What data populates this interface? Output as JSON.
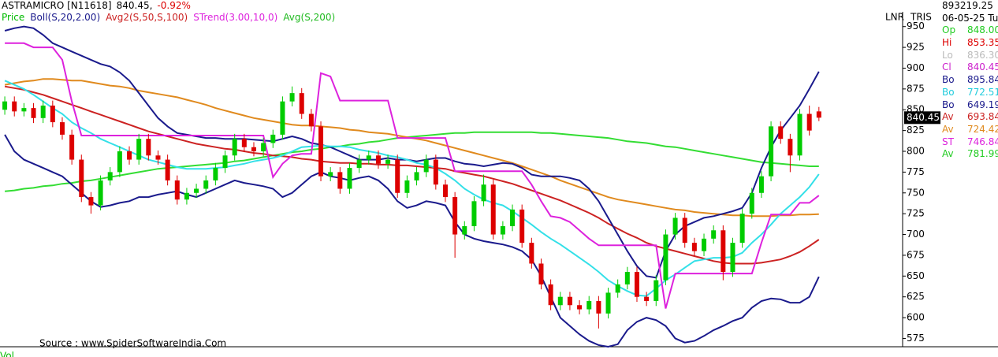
{
  "header": {
    "symbol": "ASTRAMICRO [N11618]",
    "price": "840.45,",
    "change": "-0.92%",
    "change_color": "#dd0000"
  },
  "chart_data": {
    "type": "candlestick",
    "legend": [
      {
        "name": "Price",
        "color": "#00bb00"
      },
      {
        "name": "Boll(S,20,2.00)",
        "color": "#1a1a8c"
      },
      {
        "name": "Avg2(S,50,S,100)",
        "color": "#cc2222"
      },
      {
        "name": "STrend(3.00,10,0)",
        "color": "#dd22dd"
      },
      {
        "name": "Avg(S,200)",
        "color": "#22bb22"
      }
    ],
    "axis_labels": [
      "LNR",
      "TRIS"
    ],
    "source": "Source : www.SpiderSoftwareIndia.Com",
    "volume_label": "Vol",
    "up_color": "#00cc00",
    "down_color": "#dd0000",
    "open": [
      850,
      860,
      848,
      852,
      840,
      855,
      835,
      820,
      790,
      745,
      735,
      765,
      775,
      800,
      790,
      815,
      795,
      790,
      765,
      742,
      750,
      755,
      765,
      780,
      795,
      815,
      805,
      800,
      810,
      820,
      860,
      870,
      845,
      830,
      770,
      775,
      755,
      780,
      790,
      795,
      785,
      790,
      750,
      765,
      775,
      790,
      760,
      745,
      700,
      710,
      740,
      760,
      700,
      710,
      730,
      690,
      665,
      640,
      615,
      625,
      615,
      610,
      620,
      605,
      630,
      640,
      655,
      625,
      620,
      645,
      700,
      720,
      690,
      680,
      695,
      705,
      655,
      690,
      725,
      750,
      770,
      830,
      815,
      795,
      845,
      848
    ],
    "high": [
      866,
      866,
      858,
      858,
      861,
      861,
      841,
      826,
      796,
      751,
      771,
      781,
      806,
      806,
      821,
      821,
      801,
      796,
      771,
      756,
      761,
      771,
      786,
      801,
      821,
      821,
      811,
      816,
      826,
      866,
      878,
      876,
      851,
      836,
      781,
      781,
      786,
      796,
      801,
      801,
      796,
      796,
      771,
      781,
      796,
      796,
      766,
      751,
      716,
      746,
      772,
      766,
      716,
      736,
      736,
      696,
      671,
      646,
      631,
      631,
      621,
      626,
      626,
      636,
      646,
      661,
      661,
      631,
      651,
      706,
      726,
      726,
      696,
      701,
      711,
      711,
      696,
      731,
      756,
      776,
      836,
      836,
      821,
      851,
      855,
      853.35
    ],
    "low": [
      844,
      842,
      842,
      834,
      834,
      829,
      814,
      784,
      739,
      725,
      729,
      759,
      769,
      784,
      784,
      789,
      784,
      759,
      736,
      736,
      744,
      749,
      759,
      774,
      789,
      799,
      794,
      794,
      804,
      814,
      854,
      839,
      824,
      764,
      764,
      749,
      749,
      774,
      784,
      779,
      779,
      744,
      744,
      759,
      769,
      754,
      739,
      672,
      694,
      704,
      734,
      694,
      694,
      704,
      684,
      659,
      634,
      609,
      609,
      609,
      604,
      604,
      587,
      599,
      624,
      634,
      619,
      614,
      614,
      639,
      694,
      684,
      674,
      674,
      689,
      645,
      649,
      684,
      719,
      744,
      764,
      809,
      775,
      789,
      819,
      836.3
    ],
    "close": [
      860,
      848,
      852,
      840,
      855,
      835,
      820,
      790,
      745,
      735,
      765,
      775,
      800,
      790,
      815,
      795,
      790,
      765,
      742,
      750,
      755,
      765,
      780,
      795,
      815,
      805,
      800,
      810,
      820,
      860,
      870,
      845,
      830,
      770,
      775,
      755,
      780,
      790,
      795,
      785,
      790,
      750,
      765,
      775,
      790,
      760,
      745,
      700,
      710,
      740,
      760,
      700,
      710,
      730,
      690,
      665,
      640,
      615,
      625,
      615,
      610,
      620,
      605,
      630,
      640,
      655,
      625,
      620,
      645,
      700,
      720,
      690,
      680,
      695,
      705,
      655,
      690,
      725,
      750,
      770,
      830,
      815,
      795,
      845,
      825,
      840.45
    ],
    "series": [
      {
        "color": "#33dd33",
        "values": [
          752,
          753,
          755,
          756,
          758,
          759,
          761,
          762,
          764,
          765,
          767,
          769,
          771,
          773,
          775,
          777,
          779,
          780,
          781,
          782,
          783,
          784,
          785,
          786,
          788,
          789,
          791,
          793,
          795,
          797,
          799,
          800,
          802,
          803,
          805,
          806,
          808,
          809,
          811,
          812,
          814,
          816,
          817,
          818,
          819,
          820,
          821,
          822,
          822,
          823,
          823,
          823,
          823,
          823,
          823,
          823,
          822,
          822,
          821,
          820,
          819,
          818,
          817,
          816,
          814,
          812,
          811,
          810,
          808,
          806,
          805,
          803,
          801,
          799,
          797,
          795,
          793,
          791,
          789,
          787,
          786,
          785,
          784,
          783,
          782,
          781.99
        ]
      },
      {
        "color": "#e08a1e",
        "values": [
          880,
          882,
          884,
          885,
          887,
          887,
          886,
          885,
          885,
          883,
          881,
          879,
          878,
          876,
          873,
          871,
          869,
          867,
          865,
          862,
          859,
          856,
          852,
          849,
          846,
          843,
          840,
          838,
          836,
          834,
          832,
          831,
          831,
          830,
          829,
          828,
          826,
          825,
          823,
          822,
          821,
          819,
          817,
          815,
          813,
          810,
          807,
          804,
          801,
          798,
          795,
          792,
          789,
          786,
          782,
          778,
          774,
          770,
          765,
          761,
          757,
          753,
          749,
          745,
          742,
          740,
          738,
          736,
          734,
          732,
          730,
          729,
          727,
          726,
          725,
          724,
          723,
          723,
          722,
          722,
          722,
          723,
          723,
          724,
          724,
          724.42
        ]
      },
      {
        "color": "#cc2222",
        "values": [
          878,
          876,
          874,
          871,
          868,
          864,
          860,
          856,
          852,
          848,
          844,
          840,
          836,
          832,
          828,
          824,
          821,
          818,
          815,
          812,
          809,
          807,
          805,
          803,
          802,
          800,
          798,
          797,
          795,
          794,
          793,
          791,
          790,
          788,
          787,
          786,
          786,
          785,
          785,
          784,
          784,
          783,
          783,
          782,
          781,
          780,
          779,
          776,
          774,
          772,
          770,
          767,
          764,
          761,
          757,
          753,
          749,
          745,
          741,
          736,
          731,
          726,
          720,
          713,
          707,
          701,
          696,
          690,
          686,
          683,
          680,
          677,
          674,
          671,
          668,
          666,
          665,
          665,
          665,
          666,
          668,
          670,
          674,
          679,
          686,
          693.84
        ]
      },
      {
        "color": "#1a1a8c",
        "values": [
          945,
          948,
          950,
          948,
          940,
          930,
          925,
          920,
          915,
          910,
          905,
          902,
          895,
          885,
          870,
          855,
          840,
          830,
          822,
          820,
          818,
          816,
          816,
          815,
          815,
          815,
          814,
          813,
          812,
          815,
          818,
          815,
          810,
          808,
          805,
          800,
          795,
          790,
          790,
          790,
          792,
          790,
          790,
          788,
          790,
          792,
          792,
          788,
          785,
          784,
          782,
          784,
          786,
          785,
          780,
          772,
          770,
          770,
          770,
          768,
          765,
          755,
          740,
          720,
          700,
          680,
          662,
          650,
          648,
          680,
          700,
          710,
          715,
          720,
          722,
          725,
          728,
          732,
          750,
          780,
          805,
          825,
          840,
          855,
          875,
          895.84
        ]
      },
      {
        "color": "#33e0e8",
        "values": [
          885,
          880,
          875,
          868,
          860,
          852,
          845,
          835,
          828,
          822,
          815,
          810,
          805,
          800,
          795,
          790,
          787,
          784,
          781,
          779,
          779,
          779,
          780,
          781,
          783,
          785,
          788,
          790,
          792,
          795,
          800,
          805,
          806,
          807,
          806,
          806,
          805,
          802,
          800,
          798,
          795,
          793,
          790,
          786,
          784,
          780,
          773,
          765,
          755,
          748,
          742,
          738,
          735,
          728,
          720,
          712,
          703,
          695,
          688,
          680,
          672,
          664,
          655,
          645,
          638,
          632,
          627,
          626,
          635,
          645,
          652,
          660,
          668,
          670,
          672,
          672,
          673,
          678,
          690,
          700,
          712,
          725,
          735,
          745,
          757,
          772.51
        ]
      },
      {
        "color": "#1a1a8c",
        "values": [
          820,
          800,
          790,
          785,
          780,
          775,
          770,
          760,
          750,
          740,
          733,
          735,
          738,
          740,
          745,
          745,
          748,
          750,
          752,
          748,
          745,
          750,
          755,
          760,
          765,
          762,
          760,
          758,
          755,
          745,
          750,
          760,
          770,
          775,
          770,
          768,
          765,
          768,
          770,
          765,
          755,
          740,
          732,
          735,
          740,
          738,
          735,
          715,
          700,
          695,
          692,
          690,
          688,
          685,
          680,
          670,
          650,
          625,
          600,
          590,
          580,
          572,
          567,
          565,
          568,
          585,
          595,
          600,
          597,
          590,
          575,
          570,
          572,
          578,
          585,
          590,
          596,
          600,
          612,
          620,
          623,
          622,
          618,
          618,
          625,
          649.19
        ]
      },
      {
        "color": "#dd22dd",
        "values": [
          930,
          930,
          930,
          925,
          925,
          925,
          910,
          860,
          819,
          819,
          819,
          819,
          819,
          819,
          819,
          819,
          819,
          819,
          819,
          819,
          819,
          819,
          819,
          819,
          819,
          819,
          819,
          819,
          769,
          785,
          795,
          797,
          797,
          894,
          890,
          861,
          861,
          861,
          861,
          861,
          861,
          816,
          816,
          816,
          816,
          816,
          816,
          776,
          776,
          776,
          776,
          776,
          776,
          776,
          776,
          760,
          740,
          722,
          720,
          715,
          705,
          695,
          687,
          687,
          687,
          687,
          687,
          687,
          687,
          611,
          653,
          653,
          653,
          653,
          653,
          653,
          653,
          653,
          653,
          690,
          724,
          724,
          724,
          738,
          738,
          746.84
        ]
      }
    ],
    "ylim": [
      565,
      963
    ],
    "yticks": [
      575,
      600,
      625,
      650,
      675,
      700,
      725,
      750,
      775,
      800,
      825,
      850,
      875,
      900,
      925,
      950
    ]
  },
  "info": {
    "volume": "893219.25",
    "date": "06-05-25 Tu",
    "rows": [
      {
        "label": "Op",
        "value": "848.00",
        "color": "#22cc22"
      },
      {
        "label": "Hi",
        "value": "853.35",
        "color": "#dd0000"
      },
      {
        "label": "Lo",
        "value": "836.30",
        "color": "#bbbbbb"
      },
      {
        "label": "Cl",
        "value": "840.45",
        "color": "#cc22cc"
      },
      {
        "label": "Bo",
        "value": "895.84",
        "color": "#1a1a8c"
      },
      {
        "label": "Bo",
        "value": "772.51",
        "color": "#22ccdd"
      },
      {
        "label": "Bo",
        "value": "649.19",
        "color": "#1a1a8c"
      },
      {
        "label": "Av",
        "value": "693.84",
        "color": "#cc2222"
      },
      {
        "label": "Av",
        "value": "724.42",
        "color": "#e08a1e"
      },
      {
        "label": "ST",
        "value": "746.84",
        "color": "#dd22dd"
      },
      {
        "label": "Av",
        "value": "781.99",
        "color": "#22cc22"
      }
    ]
  }
}
